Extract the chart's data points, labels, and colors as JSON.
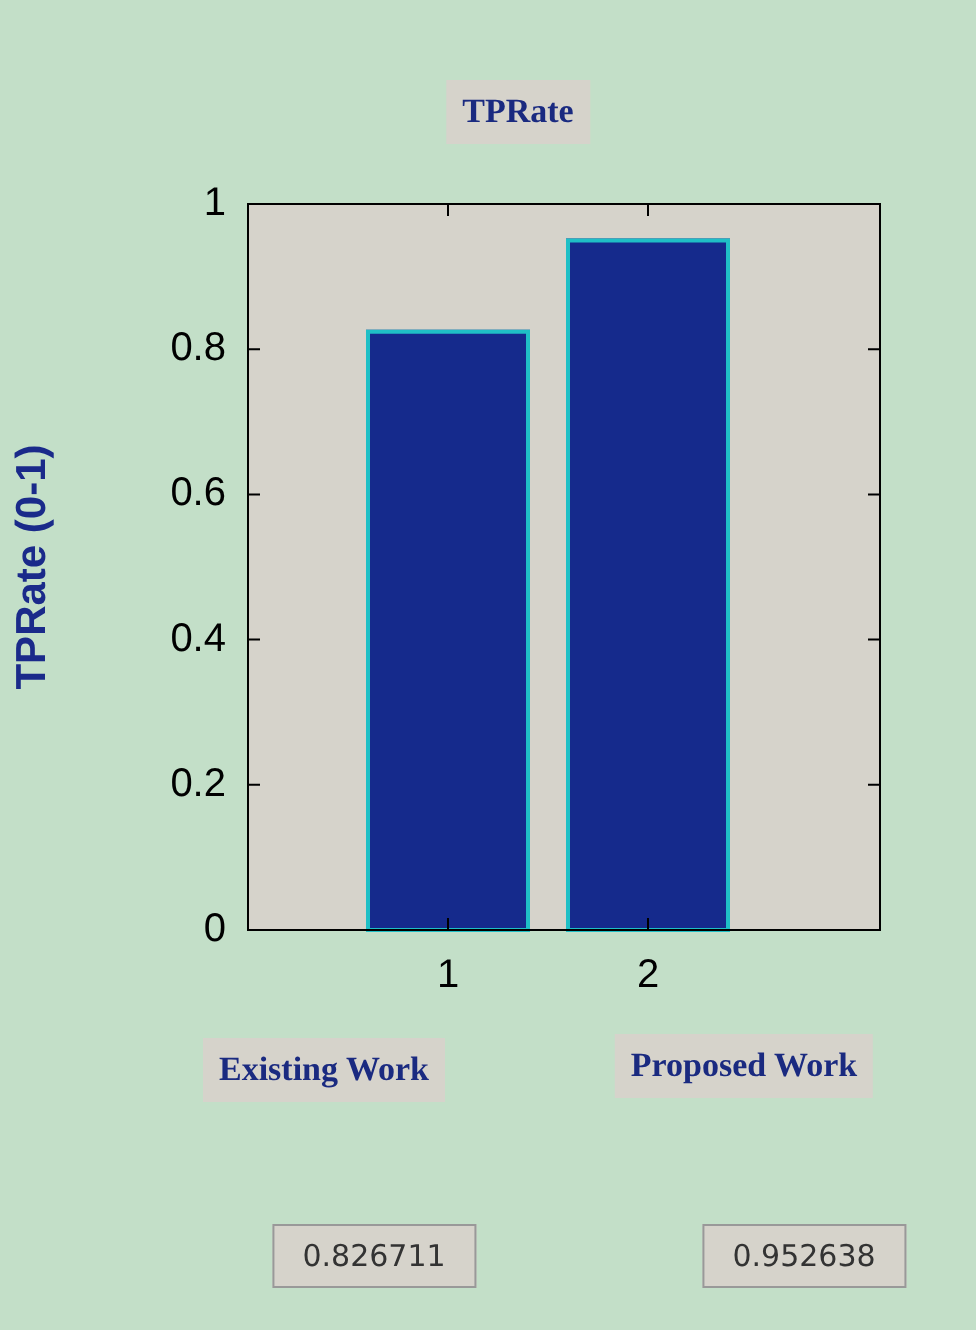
{
  "chart_data": {
    "type": "bar",
    "title": "TPRate",
    "ylabel": "TPRate (0-1)",
    "x": [
      1,
      2
    ],
    "xlim": [
      0,
      3.16
    ],
    "xticks": [
      1,
      2
    ],
    "values": [
      0.826711,
      0.952638
    ],
    "color": "#152a8c",
    "ylim": [
      0,
      1
    ],
    "yticks": [
      0,
      0.2,
      0.4,
      0.6,
      0.8,
      1
    ],
    "grid": false,
    "annotations": [
      "Existing Work",
      "Proposed Work",
      "0.826711",
      "0.952638"
    ]
  }
}
